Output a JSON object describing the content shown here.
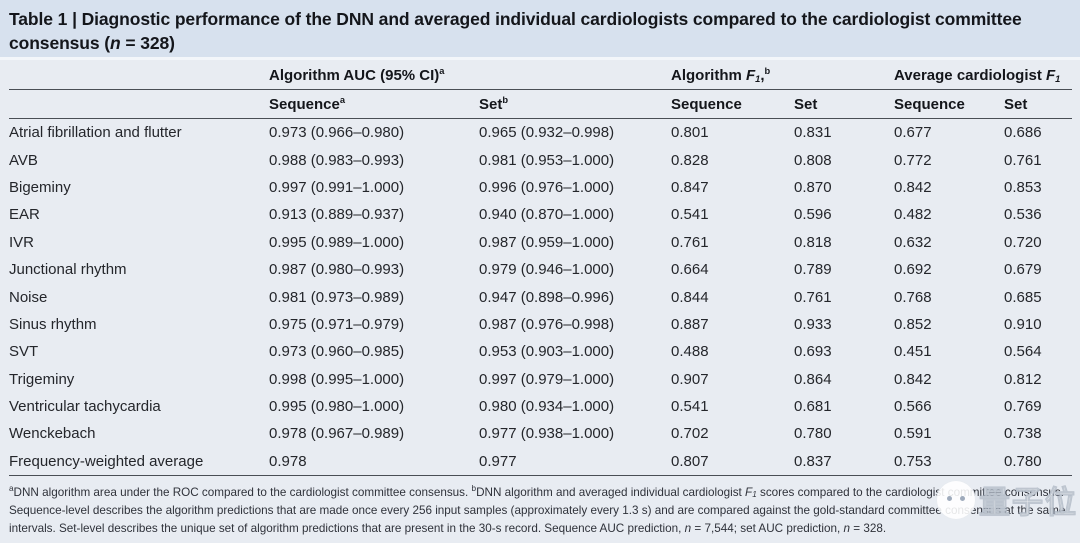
{
  "colors": {
    "title_band_bg": "#d7e1ee",
    "body_bg": "#e8ecf2",
    "rule": "#494e55",
    "text": "#24262b"
  },
  "title": {
    "prefix": "Table 1 | ",
    "main": "Diagnostic performance of the DNN and averaged individual cardiologists compared to the cardiologist committee consensus (",
    "n": "n",
    "suffix": " = 328)"
  },
  "table": {
    "col_groups": [
      {
        "text": "Algorithm AUC (95% CI)",
        "sup": "a"
      },
      {
        "pre": "Algorithm ",
        "f": "F",
        "sub": "1",
        "comma": ",",
        "sup": "b"
      },
      {
        "pre": "Average cardiologist ",
        "f": "F",
        "sub": "1"
      }
    ],
    "sub_headers": [
      {
        "text": "Sequence",
        "sup": "a"
      },
      {
        "text": "Set",
        "sup": "b"
      },
      {
        "text": "Sequence"
      },
      {
        "text": "Set"
      },
      {
        "text": "Sequence"
      },
      {
        "text": "Set"
      }
    ],
    "rows": [
      {
        "label": "Atrial fibrillation and flutter",
        "auc_seq": "0.973 (0.966–0.980)",
        "auc_set": "0.965 (0.932–0.998)",
        "f1_seq": "0.801",
        "f1_set": "0.831",
        "card_seq": "0.677",
        "card_set": "0.686"
      },
      {
        "label": "AVB",
        "auc_seq": "0.988 (0.983–0.993)",
        "auc_set": "0.981 (0.953–1.000)",
        "f1_seq": "0.828",
        "f1_set": "0.808",
        "card_seq": "0.772",
        "card_set": "0.761"
      },
      {
        "label": "Bigeminy",
        "auc_seq": "0.997 (0.991–1.000)",
        "auc_set": "0.996 (0.976–1.000)",
        "f1_seq": "0.847",
        "f1_set": "0.870",
        "card_seq": "0.842",
        "card_set": "0.853"
      },
      {
        "label": "EAR",
        "auc_seq": "0.913 (0.889–0.937)",
        "auc_set": "0.940 (0.870–1.000)",
        "f1_seq": "0.541",
        "f1_set": "0.596",
        "card_seq": "0.482",
        "card_set": "0.536"
      },
      {
        "label": "IVR",
        "auc_seq": "0.995 (0.989–1.000)",
        "auc_set": "0.987 (0.959–1.000)",
        "f1_seq": "0.761",
        "f1_set": "0.818",
        "card_seq": "0.632",
        "card_set": "0.720"
      },
      {
        "label": "Junctional rhythm",
        "auc_seq": "0.987 (0.980–0.993)",
        "auc_set": "0.979 (0.946–1.000)",
        "f1_seq": "0.664",
        "f1_set": "0.789",
        "card_seq": "0.692",
        "card_set": "0.679"
      },
      {
        "label": "Noise",
        "auc_seq": "0.981 (0.973–0.989)",
        "auc_set": "0.947 (0.898–0.996)",
        "f1_seq": "0.844",
        "f1_set": "0.761",
        "card_seq": "0.768",
        "card_set": "0.685"
      },
      {
        "label": "Sinus rhythm",
        "auc_seq": "0.975 (0.971–0.979)",
        "auc_set": "0.987 (0.976–0.998)",
        "f1_seq": "0.887",
        "f1_set": "0.933",
        "card_seq": "0.852",
        "card_set": "0.910"
      },
      {
        "label": "SVT",
        "auc_seq": "0.973 (0.960–0.985)",
        "auc_set": "0.953 (0.903–1.000)",
        "f1_seq": "0.488",
        "f1_set": "0.693",
        "card_seq": "0.451",
        "card_set": "0.564"
      },
      {
        "label": "Trigeminy",
        "auc_seq": "0.998 (0.995–1.000)",
        "auc_set": "0.997 (0.979–1.000)",
        "f1_seq": "0.907",
        "f1_set": "0.864",
        "card_seq": "0.842",
        "card_set": "0.812"
      },
      {
        "label": "Ventricular tachycardia",
        "auc_seq": "0.995 (0.980–1.000)",
        "auc_set": "0.980 (0.934–1.000)",
        "f1_seq": "0.541",
        "f1_set": "0.681",
        "card_seq": "0.566",
        "card_set": "0.769"
      },
      {
        "label": "Wenckebach",
        "auc_seq": "0.978 (0.967–0.989)",
        "auc_set": "0.977 (0.938–1.000)",
        "f1_seq": "0.702",
        "f1_set": "0.780",
        "card_seq": "0.591",
        "card_set": "0.738"
      },
      {
        "label": "Frequency-weighted average",
        "auc_seq": "0.978",
        "auc_set": "0.977",
        "f1_seq": "0.807",
        "f1_set": "0.837",
        "card_seq": "0.753",
        "card_set": "0.780"
      }
    ]
  },
  "footnote": {
    "sup_a": "a",
    "s1": "DNN algorithm area under the ROC compared to the cardiologist committee consensus. ",
    "sup_b": "b",
    "s2": "DNN algorithm and averaged individual cardiologist ",
    "f": "F",
    "f_sub": "1",
    "s3": " scores compared to the cardiologist committee consensus. Sequence-level describes the algorithm predictions that are made once every 256 input samples (approximately every 1.3 s) and are compared against the gold-standard committee consensus at the same intervals. Set-level describes the unique set of algorithm predictions that are present in the 30-s record. Sequence AUC prediction, ",
    "n1": "n",
    "s4": " = 7,544; set AUC prediction, ",
    "n2": "n",
    "s5": " = 328."
  },
  "watermark": {
    "text": "量子位"
  }
}
